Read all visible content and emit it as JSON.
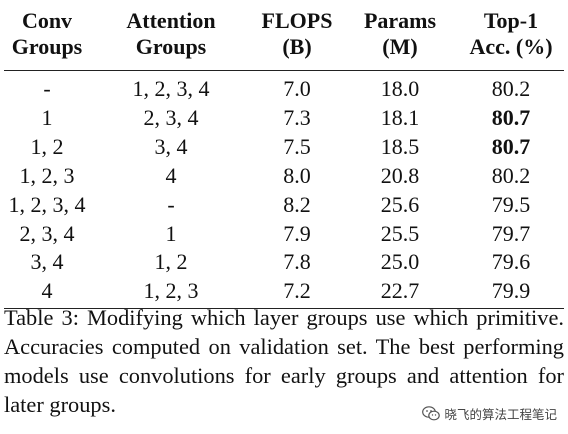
{
  "table": {
    "headers": [
      [
        "Conv",
        "Groups"
      ],
      [
        "Attention",
        "Groups"
      ],
      [
        "FLOPS",
        "(B)"
      ],
      [
        "Params",
        "(M)"
      ],
      [
        "Top-1",
        "Acc. (%)"
      ]
    ],
    "rows": [
      {
        "conv": "-",
        "attention": "1, 2, 3, 4",
        "flops": "7.0",
        "params": "18.0",
        "acc": "80.2",
        "best": false
      },
      {
        "conv": "1",
        "attention": "2, 3, 4",
        "flops": "7.3",
        "params": "18.1",
        "acc": "80.7",
        "best": true
      },
      {
        "conv": "1, 2",
        "attention": "3, 4",
        "flops": "7.5",
        "params": "18.5",
        "acc": "80.7",
        "best": true
      },
      {
        "conv": "1, 2, 3",
        "attention": "4",
        "flops": "8.0",
        "params": "20.8",
        "acc": "80.2",
        "best": false
      },
      {
        "conv": "1, 2, 3, 4",
        "attention": "-",
        "flops": "8.2",
        "params": "25.6",
        "acc": "79.5",
        "best": false
      },
      {
        "conv": "2, 3, 4",
        "attention": "1",
        "flops": "7.9",
        "params": "25.5",
        "acc": "79.7",
        "best": false
      },
      {
        "conv": "3, 4",
        "attention": "1, 2",
        "flops": "7.8",
        "params": "25.0",
        "acc": "79.6",
        "best": false
      },
      {
        "conv": "4",
        "attention": "1, 2, 3",
        "flops": "7.2",
        "params": "22.7",
        "acc": "79.9",
        "best": false
      }
    ]
  },
  "caption": {
    "text": "Table 3: Modifying which layer groups use which primitive.  Accuracies computed on validation set. The best performing models use convolutions for early groups and attention for later groups."
  },
  "watermark": {
    "text": "晓飞的算法工程笔记",
    "icon": "wechat-icon"
  }
}
